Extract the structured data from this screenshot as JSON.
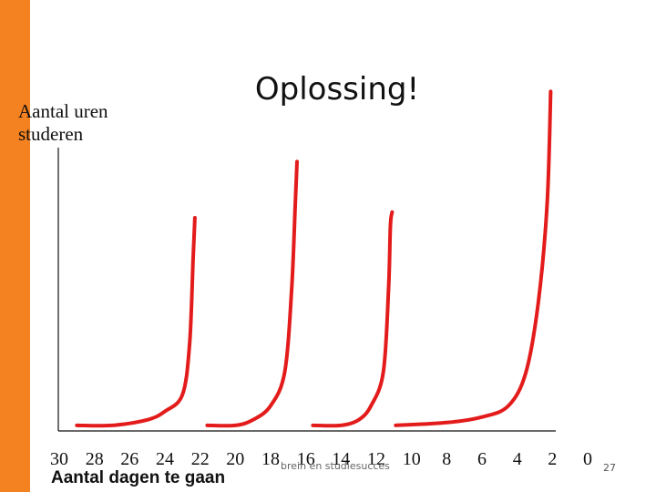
{
  "slide": {
    "title": "Oplossing!",
    "footer": "brein en studiesucces",
    "page_number": "27",
    "colors": {
      "accent_bar": "#f58220",
      "curve": "#e31b1b"
    }
  },
  "chart_data": {
    "type": "line",
    "title": "",
    "ylabel": "Aantal uren studeren",
    "xlabel": "Aantal dagen te gaan",
    "x_ticks": [
      "30",
      "28",
      "26",
      "24",
      "22",
      "20",
      "18",
      "16",
      "14",
      "12",
      "10",
      "8",
      "6",
      "4",
      "2",
      "0"
    ],
    "xlim": [
      30,
      0
    ],
    "ylim": [
      0,
      100
    ],
    "grid": false,
    "series": [
      {
        "x": [
          29,
          27,
          25,
          24,
          23,
          22.6,
          22.4,
          22.3
        ],
        "y": [
          1,
          1,
          3,
          6,
          12,
          30,
          60,
          75
        ]
      },
      {
        "x": [
          21.6,
          20,
          19,
          18,
          17.2,
          16.8,
          16.6,
          16.5
        ],
        "y": [
          1,
          1,
          3,
          8,
          20,
          50,
          80,
          95
        ]
      },
      {
        "x": [
          15.6,
          14,
          13,
          12.3,
          11.6,
          11.3,
          11.2,
          11.1
        ],
        "y": [
          1,
          1,
          3,
          8,
          20,
          50,
          72,
          77
        ]
      },
      {
        "x": [
          10.9,
          8,
          6,
          4.5,
          3.5,
          2.8,
          2.3,
          2.1
        ],
        "y": [
          1,
          2,
          4,
          8,
          20,
          45,
          80,
          120
        ]
      }
    ]
  }
}
